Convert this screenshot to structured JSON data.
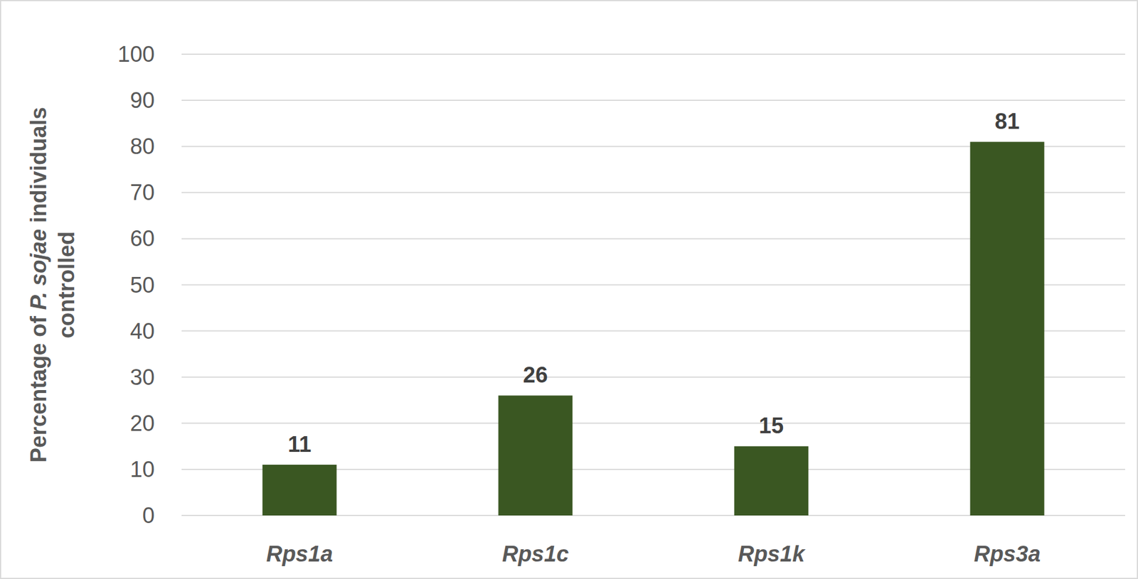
{
  "chart_data": {
    "type": "bar",
    "y_label": "Percentage of P. sojae individuals controlled",
    "categories": [
      "Rps1a",
      "Rps1c",
      "Rps1k",
      "Rps3a"
    ],
    "values": [
      11,
      26,
      15,
      81
    ],
    "color": "#3a5722",
    "ylim": [
      0,
      100
    ],
    "yticks": [
      0,
      10,
      20,
      30,
      40,
      50,
      60,
      70,
      80,
      90,
      100
    ],
    "grid": true,
    "data_labels": true
  }
}
